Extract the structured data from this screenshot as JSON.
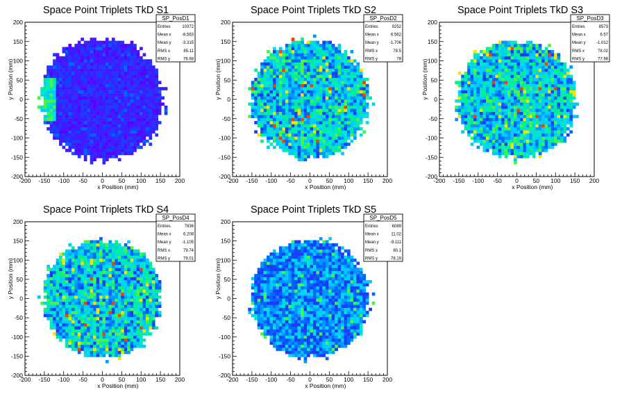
{
  "charts": [
    {
      "title": "Space Point Triplets TkD S1",
      "stats": {
        "name": "SP_PosD1",
        "rows": [
          {
            "label": "Entries",
            "value": "10372"
          },
          {
            "label": "Mean x",
            "value": "-8.563"
          },
          {
            "label": "Mean y",
            "value": "-3.315"
          },
          {
            "label": "RMS x",
            "value": "85.11"
          },
          {
            "label": "RMS y",
            "value": "76.68"
          }
        ]
      }
    },
    {
      "title": "Space Point Triplets TkD S2",
      "stats": {
        "name": "SP_PosD2",
        "rows": [
          {
            "label": "Entries",
            "value": "9252"
          },
          {
            "label": "Mean x",
            "value": "6.562"
          },
          {
            "label": "Mean y",
            "value": "-1.706"
          },
          {
            "label": "RMS x",
            "value": "78.5"
          },
          {
            "label": "RMS y",
            "value": "78"
          }
        ]
      }
    },
    {
      "title": "Space Point Triplets TkD S3",
      "stats": {
        "name": "SP_PosD3",
        "rows": [
          {
            "label": "Entries",
            "value": "8573"
          },
          {
            "label": "Mean x",
            "value": "6.57"
          },
          {
            "label": "Mean y",
            "value": "-1.012"
          },
          {
            "label": "RMS x",
            "value": "78.02"
          },
          {
            "label": "RMS y",
            "value": "77.98"
          }
        ]
      }
    },
    {
      "title": "Space Point Triplets TkD S4",
      "stats": {
        "name": "SP_PosD4",
        "rows": [
          {
            "label": "Entries",
            "value": "7836"
          },
          {
            "label": "Mean x",
            "value": "6.208"
          },
          {
            "label": "Mean y",
            "value": "-1.105"
          },
          {
            "label": "RMS x",
            "value": "79.74"
          },
          {
            "label": "RMS y",
            "value": "79.01"
          }
        ]
      }
    },
    {
      "title": "Space Point Triplets TkD S5",
      "stats": {
        "name": "SP_PosD5",
        "rows": [
          {
            "label": "Entries",
            "value": "6089"
          },
          {
            "label": "Mean x",
            "value": "11.02"
          },
          {
            "label": "Mean y",
            "value": "-9.111"
          },
          {
            "label": "RMS x",
            "value": "80.1"
          },
          {
            "label": "RMS y",
            "value": "78.19"
          }
        ]
      }
    }
  ],
  "chart_data": [
    {
      "type": "heatmap",
      "title": "Space Point Triplets TkD S1",
      "xlabel": "x Position (mm)",
      "ylabel": "y Position (mm)",
      "xlim": [
        -200,
        200
      ],
      "ylim": [
        -200,
        200
      ],
      "xticks": [
        -200,
        -150,
        -100,
        -50,
        0,
        50,
        100,
        150,
        200
      ],
      "yticks": [
        -200,
        -150,
        -100,
        -50,
        0,
        50,
        100,
        150,
        200
      ],
      "active_radius": 160,
      "bin_size": 8,
      "dominant_color": "#4a1fff",
      "grid": false,
      "legend": "top-right"
    },
    {
      "type": "heatmap",
      "title": "Space Point Triplets TkD S2",
      "xlabel": "x Position (mm)",
      "ylabel": "y Position (mm)",
      "xlim": [
        -200,
        200
      ],
      "ylim": [
        -200,
        200
      ],
      "xticks": [
        -200,
        -150,
        -100,
        -50,
        0,
        50,
        100,
        150,
        200
      ],
      "yticks": [
        -200,
        -150,
        -100,
        -50,
        0,
        50,
        100,
        150,
        200
      ],
      "active_radius": 155,
      "bin_size": 8,
      "dominant_color": "#00e6cc",
      "grid": false,
      "legend": "top-right"
    },
    {
      "type": "heatmap",
      "title": "Space Point Triplets TkD S3",
      "xlabel": "x Position (mm)",
      "ylabel": "y Position (mm)",
      "xlim": [
        -200,
        200
      ],
      "ylim": [
        -200,
        200
      ],
      "xticks": [
        -200,
        -150,
        -100,
        -50,
        0,
        50,
        100,
        150,
        200
      ],
      "yticks": [
        -200,
        -150,
        -100,
        -50,
        0,
        50,
        100,
        150,
        200
      ],
      "active_radius": 155,
      "bin_size": 8,
      "dominant_color": "#00e6cc",
      "grid": false,
      "legend": "top-right"
    },
    {
      "type": "heatmap",
      "title": "Space Point Triplets TkD S4",
      "xlabel": "x Position (mm)",
      "ylabel": "y Position (mm)",
      "xlim": [
        -200,
        200
      ],
      "ylim": [
        -200,
        200
      ],
      "xticks": [
        -200,
        -150,
        -100,
        -50,
        0,
        50,
        100,
        150,
        200
      ],
      "yticks": [
        -200,
        -150,
        -100,
        -50,
        0,
        50,
        100,
        150,
        200
      ],
      "active_radius": 155,
      "bin_size": 8,
      "dominant_color": "#00e6a0",
      "grid": false,
      "legend": "top-right"
    },
    {
      "type": "heatmap",
      "title": "Space Point Triplets TkD S5",
      "xlabel": "x Position (mm)",
      "ylabel": "y Position (mm)",
      "xlim": [
        -200,
        200
      ],
      "ylim": [
        -200,
        200
      ],
      "xticks": [
        -200,
        -150,
        -100,
        -50,
        0,
        50,
        100,
        150,
        200
      ],
      "yticks": [
        -200,
        -150,
        -100,
        -50,
        0,
        50,
        100,
        150,
        200
      ],
      "active_radius": 155,
      "bin_size": 8,
      "dominant_color": "#0099ff",
      "grid": false,
      "legend": "top-right"
    }
  ]
}
